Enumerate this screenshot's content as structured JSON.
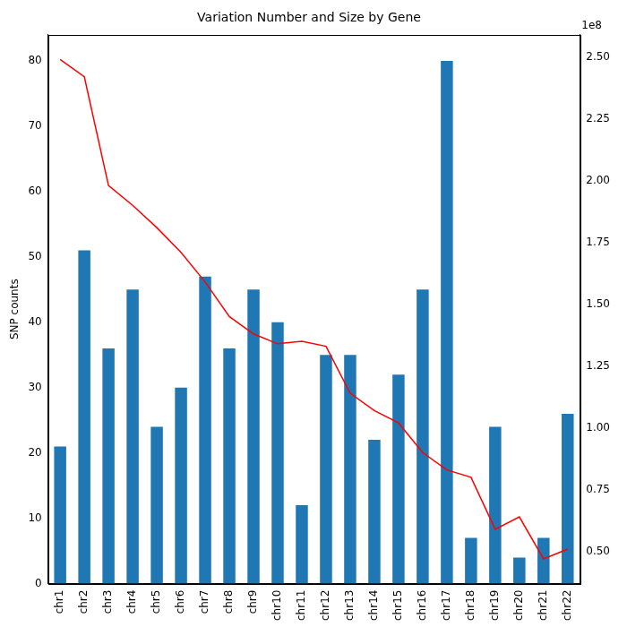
{
  "chart_data": {
    "type": "bar",
    "title": "Variation Number and Size by Gene",
    "ylabel": "SNP counts",
    "categories": [
      "chr1",
      "chr2",
      "chr3",
      "chr4",
      "chr5",
      "chr6",
      "chr7",
      "chr8",
      "chr9",
      "chr10",
      "chr11",
      "chr12",
      "chr13",
      "chr14",
      "chr15",
      "chr16",
      "chr17",
      "chr18",
      "chr19",
      "chr20",
      "chr21",
      "chr22"
    ],
    "series": [
      {
        "type": "bar",
        "color": "#1f77b4",
        "values": [
          21,
          51,
          36,
          45,
          24,
          30,
          47,
          36,
          45,
          40,
          12,
          35,
          35,
          22,
          32,
          45,
          80,
          7,
          24,
          4,
          7,
          26
        ]
      },
      {
        "type": "line",
        "color": "#ff0000",
        "axis": "y2",
        "values": [
          2.49,
          2.42,
          1.98,
          1.9,
          1.81,
          1.71,
          1.59,
          1.45,
          1.38,
          1.34,
          1.35,
          1.33,
          1.14,
          1.07,
          1.02,
          0.9,
          0.83,
          0.8,
          0.59,
          0.64,
          0.47,
          0.51
        ]
      }
    ],
    "ylim": [
      0,
      84
    ],
    "yticks": [
      0,
      10,
      20,
      30,
      40,
      50,
      60,
      70,
      80
    ],
    "y2lim": [
      0.37,
      2.59
    ],
    "y2ticks": [
      {
        "value": 0.5,
        "label": "0.50"
      },
      {
        "value": 0.75,
        "label": "0.75"
      },
      {
        "value": 1.0,
        "label": "1.00"
      },
      {
        "value": 1.25,
        "label": "1.25"
      },
      {
        "value": 1.5,
        "label": "1.50"
      },
      {
        "value": 1.75,
        "label": "1.75"
      },
      {
        "value": 2.0,
        "label": "2.00"
      },
      {
        "value": 2.25,
        "label": "2.25"
      },
      {
        "value": 2.5,
        "label": "2.50"
      }
    ],
    "annotations": [
      "1e8"
    ],
    "grid": false
  }
}
